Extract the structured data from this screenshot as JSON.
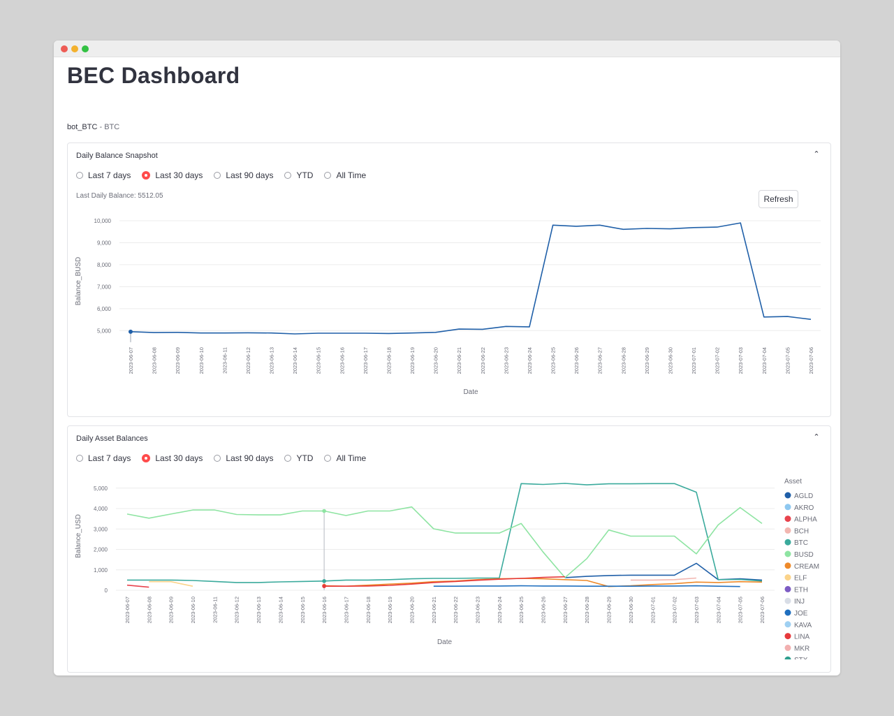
{
  "app": {
    "title": "BEC Dashboard"
  },
  "bot": {
    "name": "bot_BTC",
    "separator": " - ",
    "asset": "BTC"
  },
  "balance_panel": {
    "title": "Daily Balance Snapshot",
    "ranges": [
      "Last 7 days",
      "Last 30 days",
      "Last 90 days",
      "YTD",
      "All Time"
    ],
    "selected_range": "Last 30 days",
    "last_balance_label": "Last Daily Balance: 5512.05",
    "refresh_label": "Refresh"
  },
  "asset_panel": {
    "title": "Daily Asset Balances",
    "ranges": [
      "Last 7 days",
      "Last 30 days",
      "Last 90 days",
      "YTD",
      "All Time"
    ],
    "selected_range": "Last 30 days"
  },
  "chart_data": [
    {
      "type": "line",
      "title": "",
      "xlabel": "Date",
      "ylabel": "Balance_BUSD",
      "ylim": [
        4500,
        10000
      ],
      "yticks": [
        5000,
        6000,
        7000,
        8000,
        9000,
        10000
      ],
      "ytick_labels": [
        "5,000",
        "6,000",
        "7,000",
        "8,000",
        "9,000",
        "10,000"
      ],
      "grid": true,
      "color": "#1f5fa8",
      "x": [
        "2023-06-07",
        "2023-06-08",
        "2023-06-09",
        "2023-06-10",
        "2023-06-11",
        "2023-06-12",
        "2023-06-13",
        "2023-06-14",
        "2023-06-15",
        "2023-06-16",
        "2023-06-17",
        "2023-06-18",
        "2023-06-19",
        "2023-06-20",
        "2023-06-21",
        "2023-06-22",
        "2023-06-23",
        "2023-06-24",
        "2023-06-25",
        "2023-06-26",
        "2023-06-27",
        "2023-06-28",
        "2023-06-29",
        "2023-06-30",
        "2023-07-01",
        "2023-07-02",
        "2023-07-03",
        "2023-07-04",
        "2023-07-05",
        "2023-07-06"
      ],
      "y": [
        4950,
        4910,
        4920,
        4890,
        4890,
        4900,
        4890,
        4850,
        4880,
        4880,
        4880,
        4870,
        4890,
        4920,
        5070,
        5060,
        5190,
        5170,
        9800,
        9750,
        9800,
        9610,
        9650,
        9630,
        9690,
        9710,
        9900,
        5620,
        5640,
        5512
      ]
    },
    {
      "type": "line",
      "title": "",
      "xlabel": "Date",
      "ylabel": "Balance_USD",
      "ylim": [
        0,
        5300
      ],
      "yticks": [
        0,
        1000,
        2000,
        3000,
        4000,
        5000
      ],
      "ytick_labels": [
        "0",
        "1,000",
        "2,000",
        "3,000",
        "4,000",
        "5,000"
      ],
      "grid": true,
      "legend": {
        "title": "Asset",
        "position": "right"
      },
      "x": [
        "2023-06-07",
        "2023-06-08",
        "2023-06-09",
        "2023-06-10",
        "2023-06-11",
        "2023-06-12",
        "2023-06-13",
        "2023-06-14",
        "2023-06-15",
        "2023-06-16",
        "2023-06-17",
        "2023-06-18",
        "2023-06-19",
        "2023-06-20",
        "2023-06-21",
        "2023-06-22",
        "2023-06-23",
        "2023-06-24",
        "2023-06-25",
        "2023-06-26",
        "2023-06-27",
        "2023-06-28",
        "2023-06-29",
        "2023-06-30",
        "2023-07-01",
        "2023-07-02",
        "2023-07-03",
        "2023-07-04",
        "2023-07-05",
        "2023-07-06"
      ],
      "series": [
        {
          "name": "AGLD",
          "color": "#1f5fa8",
          "values": [
            null,
            null,
            null,
            null,
            null,
            null,
            null,
            null,
            null,
            null,
            null,
            null,
            null,
            null,
            null,
            null,
            null,
            null,
            null,
            null,
            620,
            680,
            720,
            740,
            740,
            740,
            1320,
            520,
            560,
            500
          ]
        },
        {
          "name": "AKRO",
          "color": "#8ec8f0",
          "values": [
            null,
            null,
            null,
            null,
            null,
            null,
            null,
            null,
            null,
            null,
            null,
            null,
            null,
            null,
            null,
            null,
            null,
            null,
            null,
            null,
            null,
            null,
            null,
            null,
            null,
            null,
            null,
            null,
            null,
            null
          ]
        },
        {
          "name": "ALPHA",
          "color": "#e8434d",
          "values": [
            250,
            150,
            null,
            null,
            null,
            null,
            null,
            null,
            null,
            null,
            null,
            null,
            null,
            null,
            null,
            null,
            null,
            null,
            null,
            null,
            null,
            null,
            null,
            null,
            null,
            null,
            null,
            null,
            null,
            null
          ]
        },
        {
          "name": "BCH",
          "color": "#f2b6b0",
          "values": [
            null,
            null,
            null,
            null,
            null,
            null,
            null,
            null,
            null,
            null,
            null,
            null,
            null,
            null,
            null,
            null,
            null,
            null,
            null,
            null,
            null,
            null,
            null,
            500,
            500,
            520,
            600,
            null,
            null,
            null
          ]
        },
        {
          "name": "BTC",
          "color": "#3aaa9c",
          "values": [
            500,
            500,
            500,
            480,
            430,
            380,
            380,
            410,
            430,
            450,
            500,
            500,
            520,
            560,
            580,
            580,
            600,
            600,
            5220,
            5180,
            5230,
            5160,
            5210,
            5210,
            5220,
            5220,
            4800,
            520,
            530,
            450
          ]
        },
        {
          "name": "BUSD",
          "color": "#8ee4a2",
          "values": [
            3730,
            3530,
            3730,
            3930,
            3930,
            3710,
            3690,
            3690,
            3880,
            3880,
            3660,
            3880,
            3880,
            4080,
            3010,
            2800,
            2800,
            2800,
            3270,
            1870,
            620,
            1550,
            2950,
            2650,
            2650,
            2650,
            1780,
            3200,
            4050,
            3270
          ]
        },
        {
          "name": "CREAM",
          "color": "#ee8a2a",
          "values": [
            null,
            null,
            null,
            null,
            null,
            null,
            null,
            null,
            null,
            220,
            200,
            250,
            300,
            350,
            420,
            450,
            520,
            560,
            580,
            560,
            520,
            480,
            180,
            220,
            280,
            320,
            400,
            380,
            420,
            400
          ]
        },
        {
          "name": "ELF",
          "color": "#fbd38a",
          "values": [
            null,
            420,
            420,
            200,
            null,
            null,
            null,
            null,
            null,
            null,
            null,
            null,
            null,
            null,
            null,
            null,
            null,
            null,
            null,
            null,
            null,
            null,
            null,
            null,
            null,
            null,
            null,
            null,
            null,
            null
          ]
        },
        {
          "name": "ETH",
          "color": "#7d5cc4",
          "values": [
            null,
            null,
            null,
            null,
            null,
            null,
            null,
            null,
            null,
            null,
            null,
            null,
            null,
            null,
            null,
            null,
            null,
            null,
            null,
            null,
            null,
            null,
            null,
            null,
            null,
            null,
            null,
            null,
            null,
            null
          ]
        },
        {
          "name": "INJ",
          "color": "#d8dde6",
          "values": [
            null,
            null,
            null,
            null,
            null,
            null,
            null,
            null,
            null,
            null,
            null,
            null,
            null,
            null,
            null,
            null,
            null,
            null,
            null,
            null,
            null,
            null,
            null,
            null,
            null,
            null,
            null,
            null,
            null,
            null
          ]
        },
        {
          "name": "JOE",
          "color": "#1f6fbf",
          "values": [
            null,
            null,
            null,
            null,
            null,
            null,
            null,
            null,
            null,
            null,
            null,
            null,
            null,
            null,
            200,
            200,
            210,
            210,
            220,
            210,
            210,
            200,
            200,
            200,
            210,
            210,
            220,
            200,
            180,
            null
          ]
        },
        {
          "name": "KAVA",
          "color": "#9fd0f2",
          "values": [
            null,
            null,
            null,
            null,
            null,
            null,
            null,
            null,
            null,
            null,
            null,
            null,
            null,
            null,
            null,
            null,
            null,
            null,
            null,
            null,
            null,
            null,
            null,
            null,
            null,
            null,
            null,
            null,
            null,
            null
          ]
        },
        {
          "name": "LINA",
          "color": "#e6393c",
          "values": [
            null,
            null,
            null,
            null,
            null,
            null,
            null,
            null,
            null,
            200,
            200,
            210,
            240,
            300,
            380,
            430,
            490,
            540,
            580,
            630,
            660,
            null,
            null,
            null,
            null,
            null,
            null,
            null,
            null,
            null
          ]
        },
        {
          "name": "MKR",
          "color": "#f2b0b0",
          "values": [
            null,
            null,
            null,
            null,
            null,
            null,
            null,
            null,
            null,
            null,
            null,
            null,
            null,
            null,
            null,
            null,
            null,
            null,
            null,
            null,
            null,
            null,
            null,
            null,
            null,
            null,
            null,
            null,
            null,
            null
          ]
        },
        {
          "name": "STX",
          "color": "#2e9e8e",
          "values": [
            null,
            null,
            null,
            null,
            null,
            null,
            null,
            null,
            null,
            null,
            null,
            null,
            null,
            null,
            null,
            null,
            null,
            null,
            null,
            null,
            null,
            null,
            null,
            null,
            null,
            null,
            null,
            null,
            null,
            null
          ]
        }
      ]
    }
  ]
}
